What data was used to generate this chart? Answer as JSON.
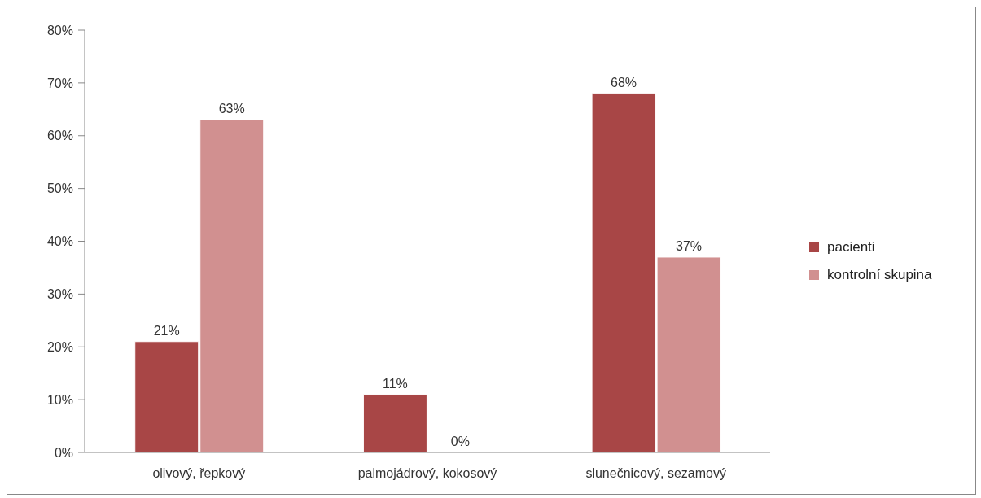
{
  "chart_data": {
    "type": "bar",
    "categories": [
      "olivový, řepkový",
      "palmojádrový, kokosový",
      "slunečnicový, sezamový"
    ],
    "series": [
      {
        "name": "pacienti",
        "color": "#a84646",
        "values": [
          21,
          11,
          68
        ],
        "value_labels": [
          "21%",
          "11%",
          "68%"
        ]
      },
      {
        "name": "kontrolní skupina",
        "color": "#d19090",
        "values": [
          63,
          0,
          37
        ],
        "value_labels": [
          "63%",
          "0%",
          "37%"
        ]
      }
    ],
    "ylim": [
      0,
      80
    ],
    "yticks": [
      {
        "value": 0,
        "label": "0%"
      },
      {
        "value": 10,
        "label": "10%"
      },
      {
        "value": 20,
        "label": "20%"
      },
      {
        "value": 30,
        "label": "30%"
      },
      {
        "value": 40,
        "label": "40%"
      },
      {
        "value": 50,
        "label": "50%"
      },
      {
        "value": 60,
        "label": "60%"
      },
      {
        "value": 70,
        "label": "70%"
      },
      {
        "value": 80,
        "label": "80%"
      }
    ],
    "grid": false,
    "legend": "right"
  }
}
